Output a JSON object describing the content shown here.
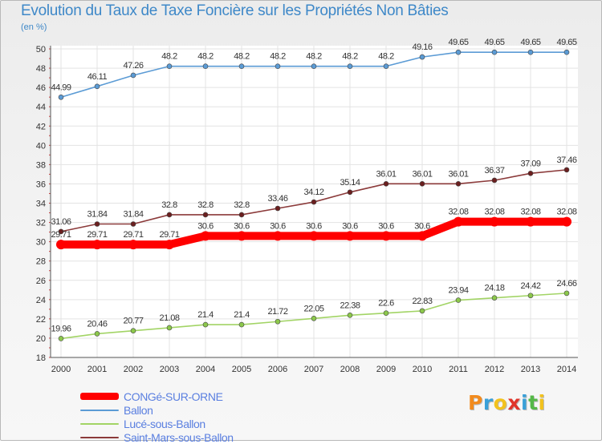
{
  "header": {
    "title": "Evolution du Taux de Taxe Foncière sur les Propriétés Non Bâties",
    "unit": "(en %)"
  },
  "logo": {
    "text": "Proxiti",
    "colors": [
      "#f28b1e",
      "#3aa0d8",
      "#f2c21e",
      "#e0342a",
      "#3aa0d8",
      "#55b848",
      "#f2c21e"
    ]
  },
  "chart_data": {
    "type": "line",
    "title": "Evolution du Taux de Taxe Foncière sur les Propriétés Non Bâties",
    "ylabel": "(en %)",
    "xlabel": "",
    "ylim": [
      18,
      50
    ],
    "yticks": [
      18,
      20,
      22,
      24,
      26,
      28,
      30,
      32,
      34,
      36,
      38,
      40,
      42,
      44,
      46,
      48,
      50
    ],
    "grid": true,
    "legend_position": "bottom-left",
    "x": [
      "2000",
      "2001",
      "2002",
      "2003",
      "2004",
      "2005",
      "2006",
      "2007",
      "2008",
      "2009",
      "2010",
      "2011",
      "2012",
      "2013",
      "2014"
    ],
    "series": [
      {
        "name": "CONGé-SUR-ORNE",
        "color": "#ff0000",
        "values": [
          29.71,
          29.71,
          29.71,
          29.71,
          30.6,
          30.6,
          30.6,
          30.6,
          30.6,
          30.6,
          30.6,
          32.08,
          32.08,
          32.08,
          32.08
        ],
        "labels": [
          "29.71",
          "29.71",
          "29.71",
          "29.71",
          "30.6",
          "30.6",
          "30.6",
          "30.6",
          "30.6",
          "30.6",
          "30.6",
          "32.08",
          "32.08",
          "32.08",
          "32.08"
        ]
      },
      {
        "name": "Ballon",
        "color": "#5b9bd5",
        "values": [
          44.99,
          46.11,
          47.26,
          48.2,
          48.2,
          48.2,
          48.2,
          48.2,
          48.2,
          48.2,
          49.16,
          49.65,
          49.65,
          49.65,
          49.65
        ],
        "labels": [
          "44.99",
          "46.11",
          "47.26",
          "48.2",
          "48.2",
          "48.2",
          "48.2",
          "48.2",
          "48.2",
          "48.2",
          "49.16",
          "49.65",
          "49.65",
          "49.65",
          "49.65"
        ]
      },
      {
        "name": "Lucé-sous-Ballon",
        "color": "#a2d465",
        "values": [
          19.96,
          20.46,
          20.77,
          21.08,
          21.4,
          21.4,
          21.72,
          22.05,
          22.38,
          22.6,
          22.83,
          23.94,
          24.18,
          24.42,
          24.66
        ],
        "labels": [
          "19.96",
          "20.46",
          "20.77",
          "21.08",
          "21.4",
          "21.4",
          "21.72",
          "22.05",
          "22.38",
          "22.6",
          "22.83",
          "23.94",
          "24.18",
          "24.42",
          "24.66"
        ]
      },
      {
        "name": "Saint-Mars-sous-Ballon",
        "color": "#8b3a3a",
        "values": [
          31.06,
          31.84,
          31.84,
          32.8,
          32.8,
          32.8,
          33.46,
          34.12,
          35.14,
          36.01,
          36.01,
          36.01,
          36.37,
          37.09,
          37.46
        ],
        "labels": [
          "31.06",
          "31.84",
          "31.84",
          "32.8",
          "32.8",
          "32.8",
          "33.46",
          "34.12",
          "35.14",
          "36.01",
          "36.01",
          "36.01",
          "36.37",
          "37.09",
          "37.46"
        ]
      }
    ]
  }
}
